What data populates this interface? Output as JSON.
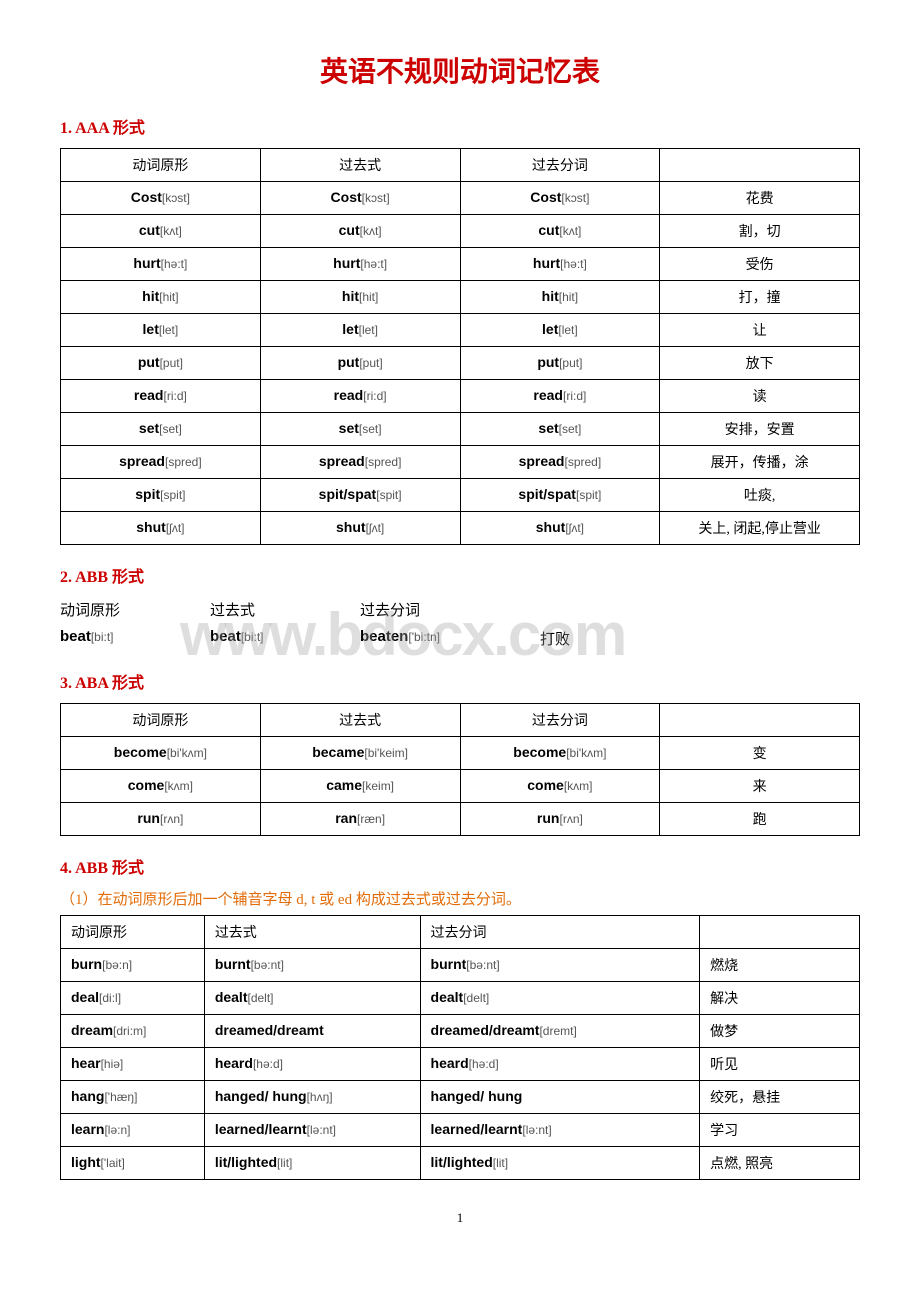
{
  "title": "英语不规则动词记忆表",
  "watermark": "www.bdocx.com",
  "page_number": "1",
  "sections": {
    "s1": {
      "title": "1.  AAA 形式",
      "color": "#cc0000",
      "headers": [
        "动词原形",
        "过去式",
        "过去分词",
        ""
      ],
      "rows": [
        {
          "base": "Cost",
          "bi": "[kɔst]",
          "past": "Cost",
          "pi": "[kɔst]",
          "pp": "Cost",
          "ppi": "[kɔst]",
          "cn": "花费"
        },
        {
          "base": "cut",
          "bi": "[kʌt]",
          "past": "cut",
          "pi": "[kʌt]",
          "pp": "cut",
          "ppi": "[kʌt]",
          "cn": "割，切"
        },
        {
          "base": "hurt",
          "bi": "[hə:t]",
          "past": "hurt",
          "pi": "[hə:t]",
          "pp": "hurt",
          "ppi": "[hə:t]",
          "cn": "受伤"
        },
        {
          "base": "hit",
          "bi": "[hit]",
          "past": "hit",
          "pi": "[hit]",
          "pp": "hit",
          "ppi": "[hit]",
          "cn": "打，撞"
        },
        {
          "base": "let",
          "bi": "[let]",
          "past": "let",
          "pi": "[let]",
          "pp": "let",
          "ppi": "[let]",
          "cn": "让"
        },
        {
          "base": "put",
          "bi": "[put]",
          "past": "put",
          "pi": "[put]",
          "pp": "put",
          "ppi": "[put]",
          "cn": "放下"
        },
        {
          "base": "read",
          "bi": "[ri:d]",
          "past": "read",
          "pi": "[ri:d]",
          "pp": "read",
          "ppi": "[ri:d]",
          "cn": "读"
        },
        {
          "base": "set",
          "bi": "[set]",
          "past": "set",
          "pi": "[set]",
          "pp": "set",
          "ppi": "[set]",
          "cn": "安排，安置"
        },
        {
          "base": "spread",
          "bi": "[spred]",
          "past": "spread",
          "pi": "[spred]",
          "pp": "spread",
          "ppi": "[spred]",
          "cn": "展开，传播，涂"
        },
        {
          "base": "spit",
          "bi": "[spit]",
          "past": "spit/spat",
          "pi": "[spit]",
          "pp": "spit/spat",
          "ppi": "[spit]",
          "cn": "吐痰,"
        },
        {
          "base": "shut",
          "bi": "[ʃʌt]",
          "past": "shut",
          "pi": "[ʃʌt]",
          "pp": "shut",
          "ppi": "[ʃʌt]",
          "cn": "关上, 闭起,停止营业"
        }
      ]
    },
    "s2": {
      "title": "2. ABB 形式",
      "color": "#cc0000",
      "headers": [
        "动词原形",
        "过去式",
        "过去分词",
        ""
      ],
      "row": {
        "base": "beat",
        "bi": "[bi:t]",
        "past": "beat",
        "pi": "[bi:t]",
        "pp": "beaten",
        "ppi": "['bi:tn]",
        "cn": "打败"
      }
    },
    "s3": {
      "title": "3. ABA 形式",
      "color": "#cc0000",
      "headers": [
        "动词原形",
        "过去式",
        "过去分词",
        ""
      ],
      "rows": [
        {
          "base": "become",
          "bi": "[bi'kʌm]",
          "past": "became",
          "pi": "[bi'keim]",
          "pp": "become",
          "ppi": "[bi'kʌm]",
          "cn": "变"
        },
        {
          "base": "come",
          "bi": "[kʌm]",
          "past": "came",
          "pi": "[keim]",
          "pp": "come",
          "ppi": "[kʌm]",
          "cn": "来"
        },
        {
          "base": "run",
          "bi": "[rʌn]",
          "past": "ran",
          "pi": "[ræn]",
          "pp": "run",
          "ppi": "[rʌn]",
          "cn": "跑"
        }
      ]
    },
    "s4": {
      "title": "4. ABB 形式",
      "color": "#cc0000",
      "subtitle": "（1）在动词原形后加一个辅音字母 d, t 或 ed 构成过去式或过去分词。",
      "subtitle_color": "#e36c09",
      "headers": [
        "动词原形",
        "过去式",
        "过去分词",
        ""
      ],
      "col_widths": [
        "18%",
        "27%",
        "35%",
        "20%"
      ],
      "rows": [
        {
          "base": "burn",
          "bi": "[bə:n]",
          "past": "burnt",
          "pi": "[bə:nt]",
          "pp": "burnt",
          "ppi": "[bə:nt]",
          "cn": "燃烧"
        },
        {
          "base": "deal",
          "bi": "[di:l]",
          "past": "dealt",
          "pi": "[delt]",
          "pp": "dealt",
          "ppi": "[delt]",
          "cn": "解决"
        },
        {
          "base": "dream",
          "bi": "[dri:m]",
          "past": "dreamed/dreamt",
          "pi": "",
          "pp": "dreamed/dreamt",
          "ppi": "[dremt]",
          "cn": "做梦"
        },
        {
          "base": "hear",
          "bi": "[hiə]",
          "past": "heard",
          "pi": "[hə:d]",
          "pp": "heard",
          "ppi": "[hə:d]",
          "cn": "听见"
        },
        {
          "base": "hang",
          "bi": "['hæŋ]",
          "past": "hanged/ hung",
          "pi": "[hʌŋ]",
          "pp": "hanged/ hung",
          "ppi": "",
          "cn": "绞死，悬挂"
        },
        {
          "base": "learn",
          "bi": "[lə:n]",
          "past": "learned/learnt",
          "pi": "[lə:nt]",
          "pp": "learned/learnt",
          "ppi": "[lə:nt]",
          "cn": "学习"
        },
        {
          "base": "light",
          "bi": "['lait]",
          "past": "lit/lighted",
          "pi": "[lit]",
          "pp": "lit/lighted",
          "ppi": "[lit]",
          "cn": "点燃, 照亮"
        }
      ]
    }
  }
}
